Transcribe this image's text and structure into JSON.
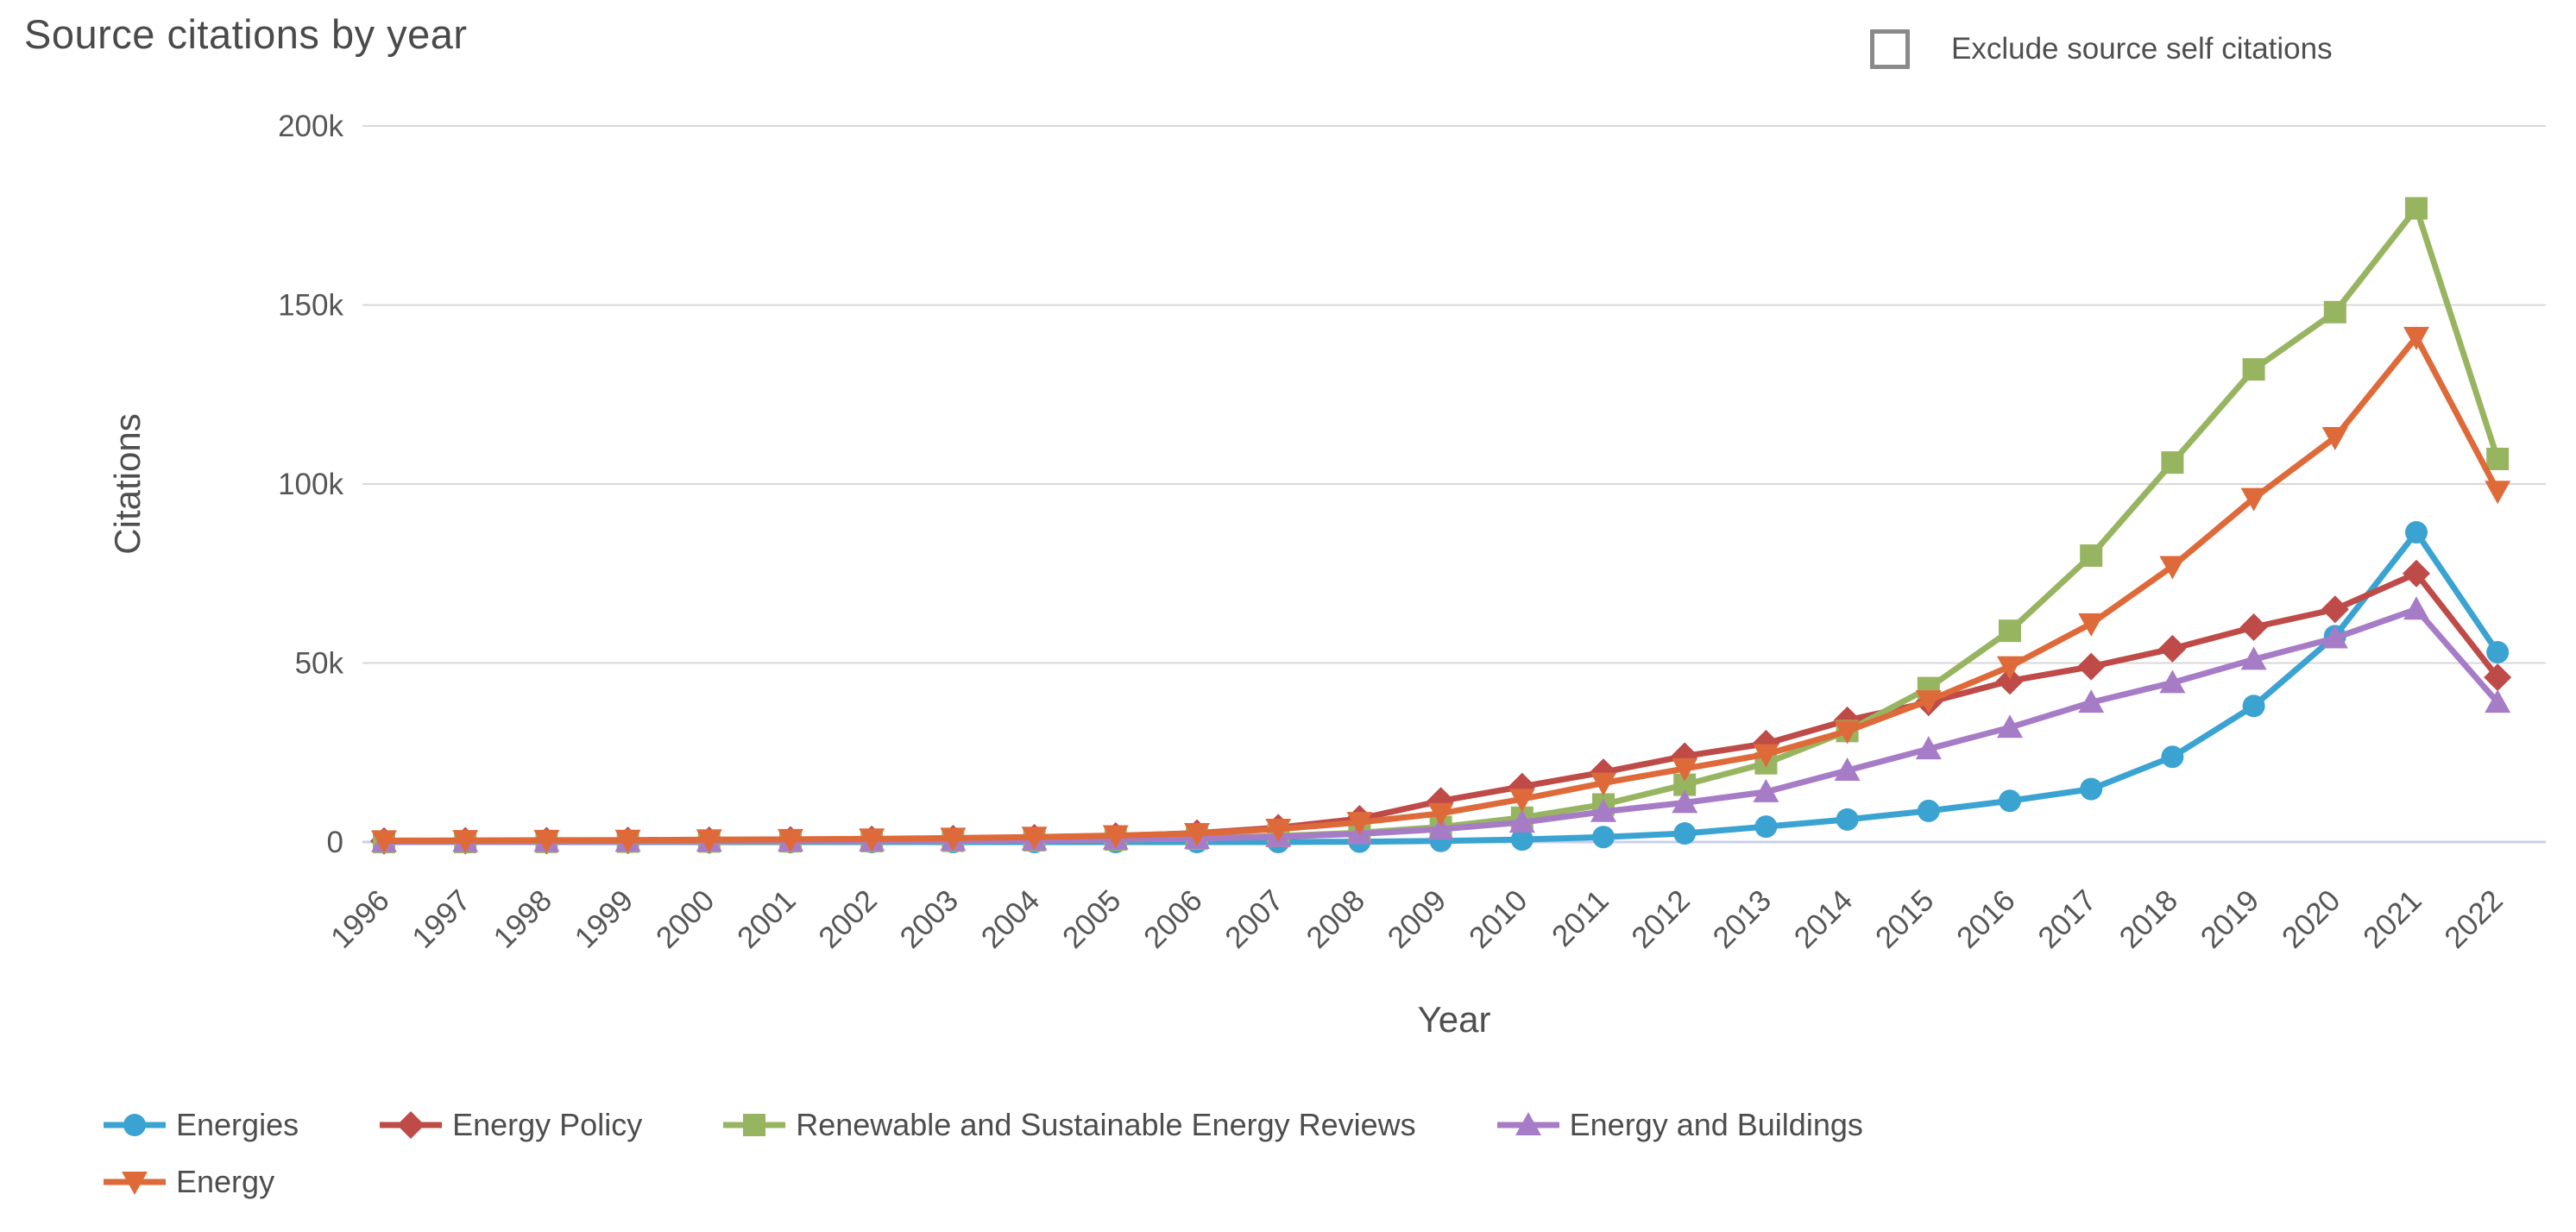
{
  "header": {
    "title": "Source citations by year",
    "exclude_self_citations_label": "Exclude source self citations",
    "exclude_self_citations_checked": false
  },
  "chart_data": {
    "type": "line",
    "title": "Source citations by year",
    "xlabel": "Year",
    "ylabel": "Citations",
    "ylim": [
      0,
      200000
    ],
    "grid": true,
    "legend_position": "bottom",
    "y_ticks": [
      {
        "label": "200k",
        "value": 200000
      },
      {
        "label": "150k",
        "value": 150000
      },
      {
        "label": "100k",
        "value": 100000
      },
      {
        "label": "50k",
        "value": 50000
      },
      {
        "label": "0",
        "value": 0
      }
    ],
    "x": [
      1996,
      1997,
      1998,
      1999,
      2000,
      2001,
      2002,
      2003,
      2004,
      2005,
      2006,
      2007,
      2008,
      2009,
      2010,
      2011,
      2012,
      2013,
      2014,
      2015,
      2016,
      2017,
      2018,
      2019,
      2020,
      2021,
      2022
    ],
    "series": [
      {
        "name": "Energies",
        "color": "#3BA3D2",
        "marker": "circle",
        "legend_row": 0,
        "values": [
          0,
          0,
          0,
          0,
          0,
          0,
          0,
          0,
          0,
          0,
          0,
          0,
          100,
          300,
          700,
          1400,
          2400,
          4300,
          6300,
          8700,
          11500,
          14800,
          23800,
          38000,
          57500,
          86500,
          53000
        ]
      },
      {
        "name": "Energy Policy",
        "color": "#BE4B48",
        "marker": "diamond",
        "legend_row": 0,
        "values": [
          300,
          350,
          400,
          450,
          500,
          600,
          750,
          950,
          1200,
          1700,
          2500,
          4000,
          6500,
          11500,
          15500,
          19500,
          24000,
          27500,
          34000,
          39000,
          45000,
          49000,
          54000,
          60000,
          65000,
          75000,
          46000
        ]
      },
      {
        "name": "Renewable and Sustainable Energy Reviews",
        "color": "#97B561",
        "marker": "square",
        "legend_row": 0,
        "values": [
          0,
          0,
          50,
          100,
          150,
          200,
          250,
          350,
          500,
          700,
          1000,
          1700,
          2600,
          4200,
          6800,
          10500,
          16000,
          22000,
          31000,
          43000,
          59000,
          80000,
          106000,
          132000,
          148000,
          177000,
          107000
        ]
      },
      {
        "name": "Energy and Buildings",
        "color": "#A77CC6",
        "marker": "triangle-up",
        "legend_row": 0,
        "values": [
          100,
          120,
          150,
          180,
          220,
          270,
          330,
          420,
          550,
          750,
          1000,
          1500,
          2300,
          3600,
          5500,
          8500,
          11000,
          14000,
          20000,
          26000,
          32000,
          39000,
          44500,
          51000,
          57000,
          65000,
          39000
        ]
      },
      {
        "name": "Energy",
        "color": "#DE6A3A",
        "marker": "triangle-down",
        "legend_row": 1,
        "values": [
          400,
          450,
          500,
          550,
          650,
          750,
          900,
          1100,
          1400,
          1800,
          2400,
          3600,
          5500,
          8000,
          12000,
          16500,
          20500,
          24500,
          31000,
          39500,
          49000,
          61000,
          77000,
          96000,
          113000,
          141000,
          98000
        ]
      }
    ],
    "colors": {
      "gridline": "#d9d9d9",
      "zero_axis": "#c9cfe8",
      "tick_text": "#565656",
      "axis_label_text": "#4f4f4f"
    }
  }
}
